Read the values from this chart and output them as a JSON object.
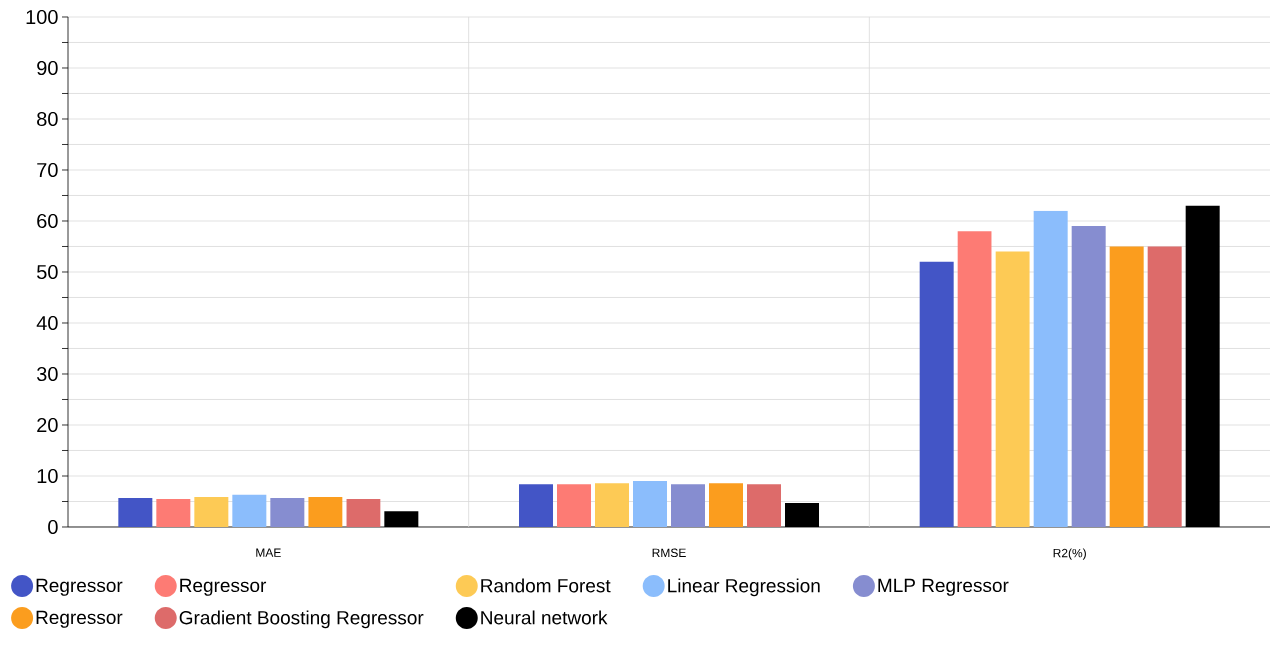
{
  "chart_data": {
    "type": "bar",
    "categories": [
      "MAE",
      "RMSE",
      "R2(%)"
    ],
    "series": [
      {
        "name": "Regressor",
        "color": "#4355c6",
        "values": [
          5.7,
          8.4,
          52
        ]
      },
      {
        "name": "Regressor",
        "color": "#fd7b74",
        "values": [
          5.5,
          8.4,
          58
        ]
      },
      {
        "name": "Random Forest",
        "color": "#fdca55",
        "values": [
          5.9,
          8.6,
          54
        ]
      },
      {
        "name": "Linear Regression",
        "color": "#8bbdfc",
        "values": [
          6.3,
          9.0,
          62
        ]
      },
      {
        "name": "MLP Regressor",
        "color": "#868dd0",
        "values": [
          5.7,
          8.4,
          59
        ]
      },
      {
        "name": "Regressor",
        "color": "#fb9d1e",
        "values": [
          5.9,
          8.6,
          55
        ]
      },
      {
        "name": "Gradient Boosting Regressor",
        "color": "#dd6b6a",
        "values": [
          5.5,
          8.4,
          55
        ]
      },
      {
        "name": "Neural network",
        "color": "#000000",
        "values": [
          3.1,
          4.7,
          63
        ]
      }
    ],
    "ylim": [
      0,
      100
    ],
    "yticks": [
      0,
      {
        "value": 5,
        "label": null
      },
      10,
      {
        "value": 15,
        "label": null
      },
      20,
      {
        "value": 25,
        "label": null
      },
      30,
      {
        "value": 35,
        "label": null
      },
      40,
      {
        "value": 45,
        "label": null
      },
      50,
      {
        "value": 55,
        "label": null
      },
      60,
      {
        "value": 65,
        "label": null
      },
      70,
      {
        "value": 75,
        "label": null
      },
      80,
      {
        "value": 85,
        "label": null
      },
      90,
      {
        "value": 95,
        "label": null
      },
      100
    ],
    "grid": true,
    "legend": "bottom"
  }
}
